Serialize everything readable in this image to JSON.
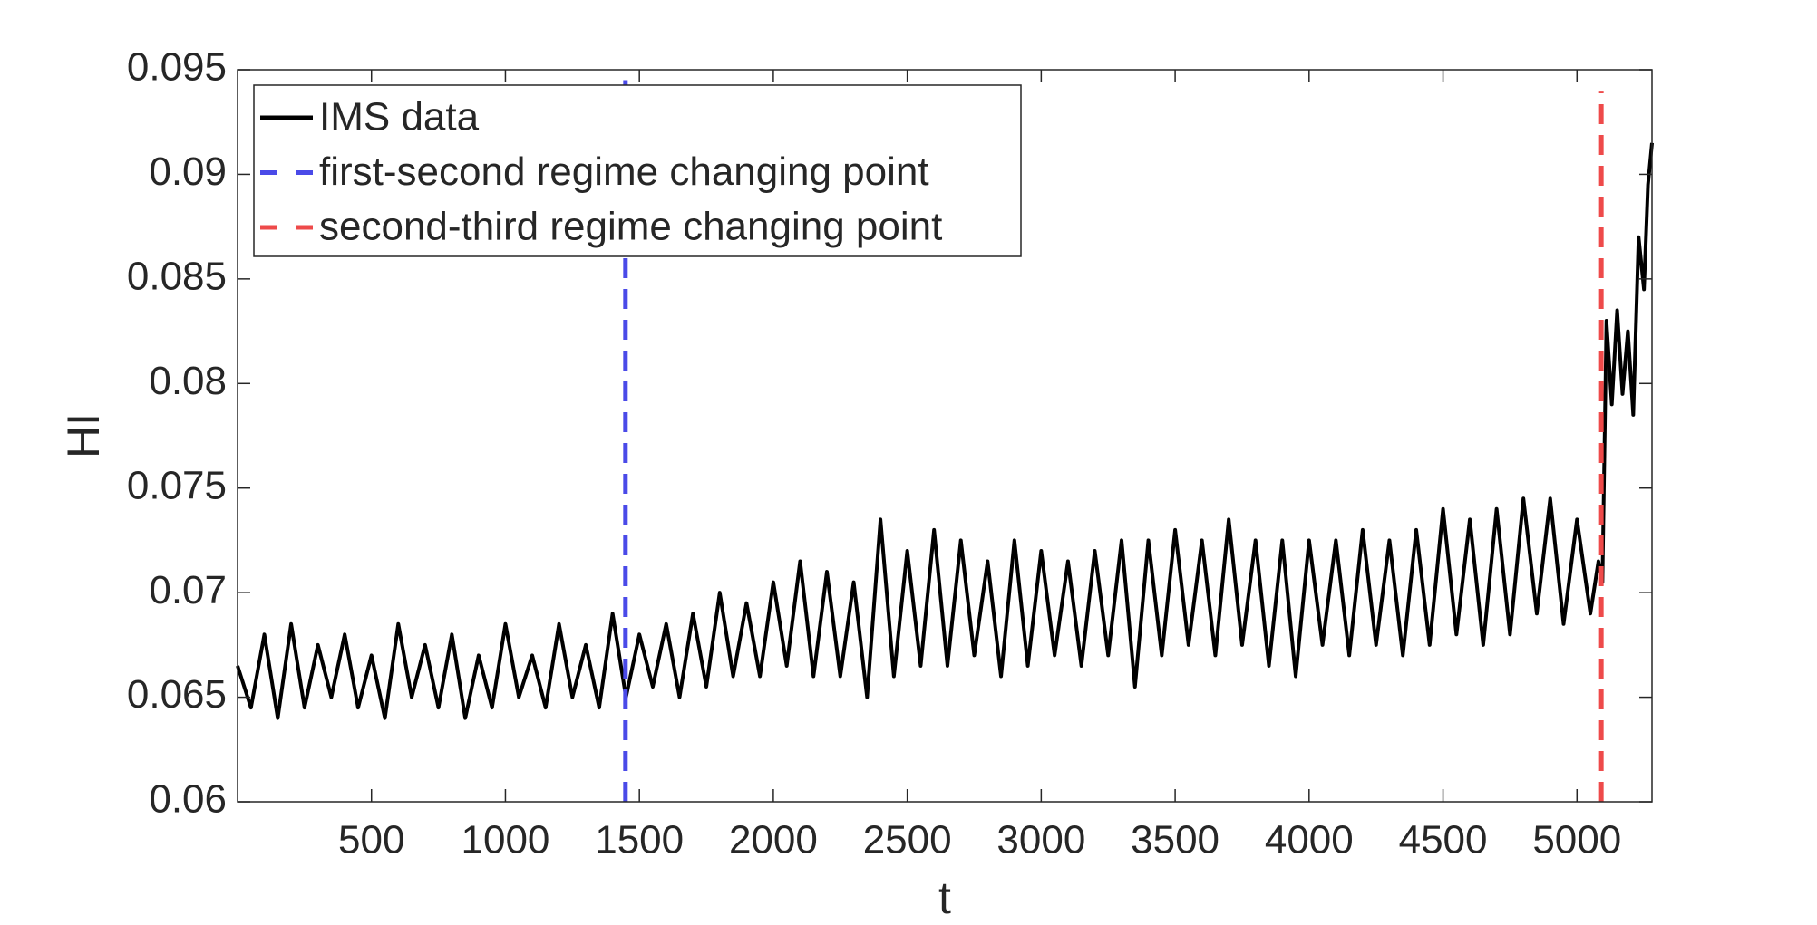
{
  "chart_data": {
    "type": "line",
    "xlabel": "t",
    "ylabel": "HI",
    "xlim": [
      0,
      5280
    ],
    "ylim": [
      0.06,
      0.095
    ],
    "xticks": [
      500,
      1000,
      1500,
      2000,
      2500,
      3000,
      3500,
      4000,
      4500,
      5000
    ],
    "yticks": [
      0.06,
      0.065,
      0.07,
      0.075,
      0.08,
      0.085,
      0.09,
      0.095
    ],
    "legend": "upper left",
    "series": [
      {
        "name": "IMS data",
        "color": "#000000",
        "dash": false,
        "x": [
          0,
          50,
          100,
          150,
          200,
          250,
          300,
          350,
          400,
          450,
          500,
          550,
          600,
          650,
          700,
          750,
          800,
          850,
          900,
          950,
          1000,
          1050,
          1100,
          1150,
          1200,
          1250,
          1300,
          1350,
          1400,
          1450,
          1500,
          1550,
          1600,
          1650,
          1700,
          1750,
          1800,
          1850,
          1900,
          1950,
          2000,
          2050,
          2100,
          2150,
          2200,
          2250,
          2300,
          2350,
          2400,
          2450,
          2500,
          2550,
          2600,
          2650,
          2700,
          2750,
          2800,
          2850,
          2900,
          2950,
          3000,
          3050,
          3100,
          3150,
          3200,
          3250,
          3300,
          3350,
          3400,
          3450,
          3500,
          3550,
          3600,
          3650,
          3700,
          3750,
          3800,
          3850,
          3900,
          3950,
          4000,
          4050,
          4100,
          4150,
          4200,
          4250,
          4300,
          4350,
          4400,
          4450,
          4500,
          4550,
          4600,
          4650,
          4700,
          4750,
          4800,
          4850,
          4900,
          4950,
          5000,
          5050,
          5080,
          5095,
          5110,
          5130,
          5150,
          5170,
          5190,
          5210,
          5230,
          5250,
          5265,
          5280
        ],
        "values": [
          0.0665,
          0.0645,
          0.068,
          0.064,
          0.0685,
          0.0645,
          0.0675,
          0.065,
          0.068,
          0.0645,
          0.067,
          0.064,
          0.0685,
          0.065,
          0.0675,
          0.0645,
          0.068,
          0.064,
          0.067,
          0.0645,
          0.0685,
          0.065,
          0.067,
          0.0645,
          0.0685,
          0.065,
          0.0675,
          0.0645,
          0.069,
          0.065,
          0.068,
          0.0655,
          0.0685,
          0.065,
          0.069,
          0.0655,
          0.07,
          0.066,
          0.0695,
          0.066,
          0.0705,
          0.0665,
          0.0715,
          0.066,
          0.071,
          0.066,
          0.0705,
          0.065,
          0.0735,
          0.066,
          0.072,
          0.0665,
          0.073,
          0.0665,
          0.0725,
          0.067,
          0.0715,
          0.066,
          0.0725,
          0.0665,
          0.072,
          0.067,
          0.0715,
          0.0665,
          0.072,
          0.067,
          0.0725,
          0.0655,
          0.0725,
          0.067,
          0.073,
          0.0675,
          0.0725,
          0.067,
          0.0735,
          0.0675,
          0.0725,
          0.0665,
          0.0725,
          0.066,
          0.0725,
          0.0675,
          0.0725,
          0.067,
          0.073,
          0.0675,
          0.0725,
          0.067,
          0.073,
          0.0675,
          0.074,
          0.068,
          0.0735,
          0.0675,
          0.074,
          0.068,
          0.0745,
          0.069,
          0.0745,
          0.0685,
          0.0735,
          0.069,
          0.0715,
          0.0705,
          0.083,
          0.079,
          0.0835,
          0.0795,
          0.0825,
          0.0785,
          0.087,
          0.0845,
          0.0895,
          0.0915
        ]
      },
      {
        "name": "first-second regime changing point",
        "color": "#4a4ae8",
        "dash": true,
        "x": [
          1448,
          1448
        ],
        "values": [
          0.06,
          0.0945
        ]
      },
      {
        "name": "second-third regime changing point",
        "color": "#ee4a4a",
        "dash": true,
        "x": [
          5091,
          5091
        ],
        "values": [
          0.06,
          0.094
        ]
      }
    ]
  }
}
